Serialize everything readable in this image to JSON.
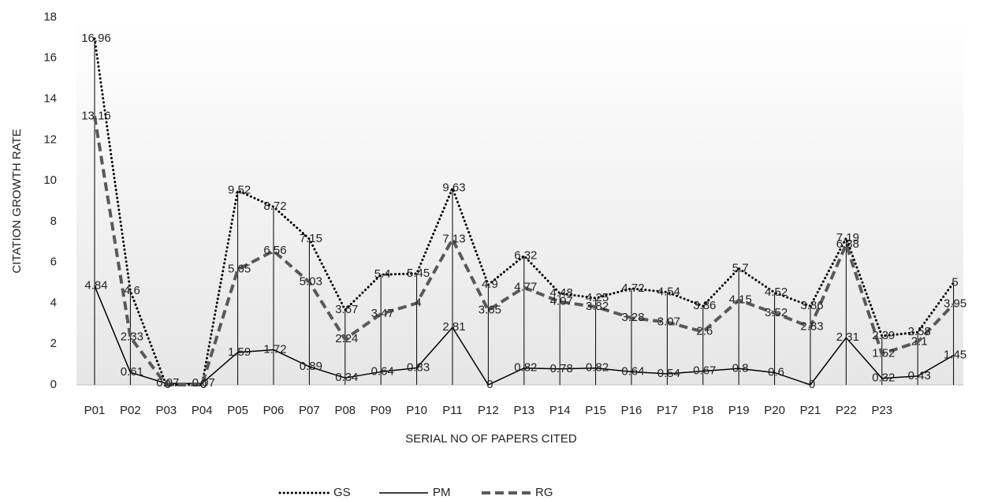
{
  "chart_data": {
    "type": "line",
    "xlabel": "SERIAL NO OF PAPERS CITED",
    "ylabel": "CITATION GROWTH RATE",
    "categories": [
      "P01",
      "P02",
      "P03",
      "P04",
      "P05",
      "P06",
      "P07",
      "P08",
      "P09",
      "P10",
      "P11",
      "P12",
      "P13",
      "P14",
      "P15",
      "P16",
      "P17",
      "P18",
      "P19",
      "P20",
      "P21",
      "P22",
      "P23",
      null,
      null
    ],
    "series": [
      {
        "name": "GS",
        "color": "#000000",
        "values": [
          16.96,
          4.6,
          0,
          0,
          9.52,
          8.72,
          7.15,
          3.67,
          5.4,
          5.45,
          9.63,
          4.9,
          6.32,
          4.48,
          4.25,
          4.72,
          4.54,
          3.86,
          5.7,
          4.52,
          3.86,
          7.19,
          2.39,
          2.58,
          5
        ]
      },
      {
        "name": "PM",
        "color": "#000000",
        "values": [
          4.84,
          0.61,
          0.07,
          0.07,
          1.59,
          1.72,
          0.89,
          0.34,
          0.64,
          0.83,
          2.81,
          0,
          0.82,
          0.78,
          0.82,
          0.64,
          0.54,
          0.67,
          0.8,
          0.6,
          0,
          2.31,
          0.32,
          0.43,
          1.45
        ]
      },
      {
        "name": "RG",
        "color": "#595959",
        "values": [
          13.16,
          2.33,
          0,
          0,
          5.65,
          6.56,
          5.03,
          2.24,
          3.47,
          4,
          7.13,
          3.65,
          4.77,
          4.07,
          3.82,
          3.28,
          3.07,
          2.6,
          4.15,
          3.52,
          2.83,
          6.88,
          1.52,
          2.1,
          3.95
        ]
      }
    ],
    "ylim": [
      0,
      18
    ],
    "yticks": [
      0,
      2,
      4,
      6,
      8,
      10,
      12,
      14,
      16,
      18
    ],
    "legend": "bottom"
  }
}
